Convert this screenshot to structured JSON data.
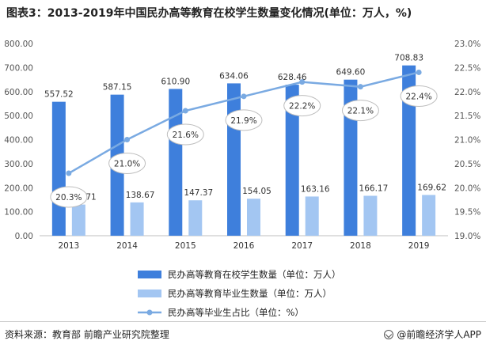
{
  "title": "图表3：2013-2019年中国民办高等教育在校学生数量变化情况(单位：万人，%)",
  "source": "资料来源：教育部 前瞻产业研究院整理",
  "brand": "@前瞻经济学人APP",
  "colors": {
    "enrolled": "#3e7fdc",
    "graduates": "#a3c6f2",
    "ratio": "#7aaae2"
  },
  "chart_data": {
    "type": "bar",
    "categories": [
      "2013",
      "2014",
      "2015",
      "2016",
      "2017",
      "2018",
      "2019"
    ],
    "series": [
      {
        "name": "民办高等教育在校学生数量（单位：万人）",
        "type": "bar",
        "axis": "left",
        "values": [
          557.52,
          587.15,
          610.9,
          634.06,
          628.46,
          649.6,
          708.83
        ],
        "labels": [
          "557.52",
          "587.15",
          "610.90",
          "634.06",
          "628.46",
          "649.60",
          "708.83"
        ]
      },
      {
        "name": "民办高等教育毕业生数量（单位：万人）",
        "type": "bar",
        "axis": "left",
        "values": [
          129.71,
          138.67,
          147.37,
          154.05,
          163.16,
          166.17,
          169.62
        ],
        "labels": [
          "129.71",
          "138.67",
          "147.37",
          "154.05",
          "163.16",
          "166.17",
          "169.62"
        ]
      },
      {
        "name": "民办高等毕业生占比（单位：%）",
        "type": "line",
        "axis": "right",
        "values": [
          20.3,
          21.0,
          21.6,
          21.9,
          22.2,
          22.1,
          22.4
        ],
        "labels": [
          "20.3%",
          "21.0%",
          "21.6%",
          "21.9%",
          "22.2%",
          "22.1%",
          "22.4%"
        ]
      }
    ],
    "y_left": {
      "min": 0,
      "max": 800,
      "ticks": [
        "0.00",
        "100.00",
        "200.00",
        "300.00",
        "400.00",
        "500.00",
        "600.00",
        "700.00",
        "800.00"
      ]
    },
    "y_right": {
      "min": 19.0,
      "max": 23.0,
      "ticks": [
        "19.0%",
        "19.5%",
        "20.0%",
        "20.5%",
        "21.0%",
        "21.5%",
        "22.0%",
        "22.5%",
        "23.0%"
      ]
    },
    "grid": false,
    "legend_position": "bottom"
  }
}
